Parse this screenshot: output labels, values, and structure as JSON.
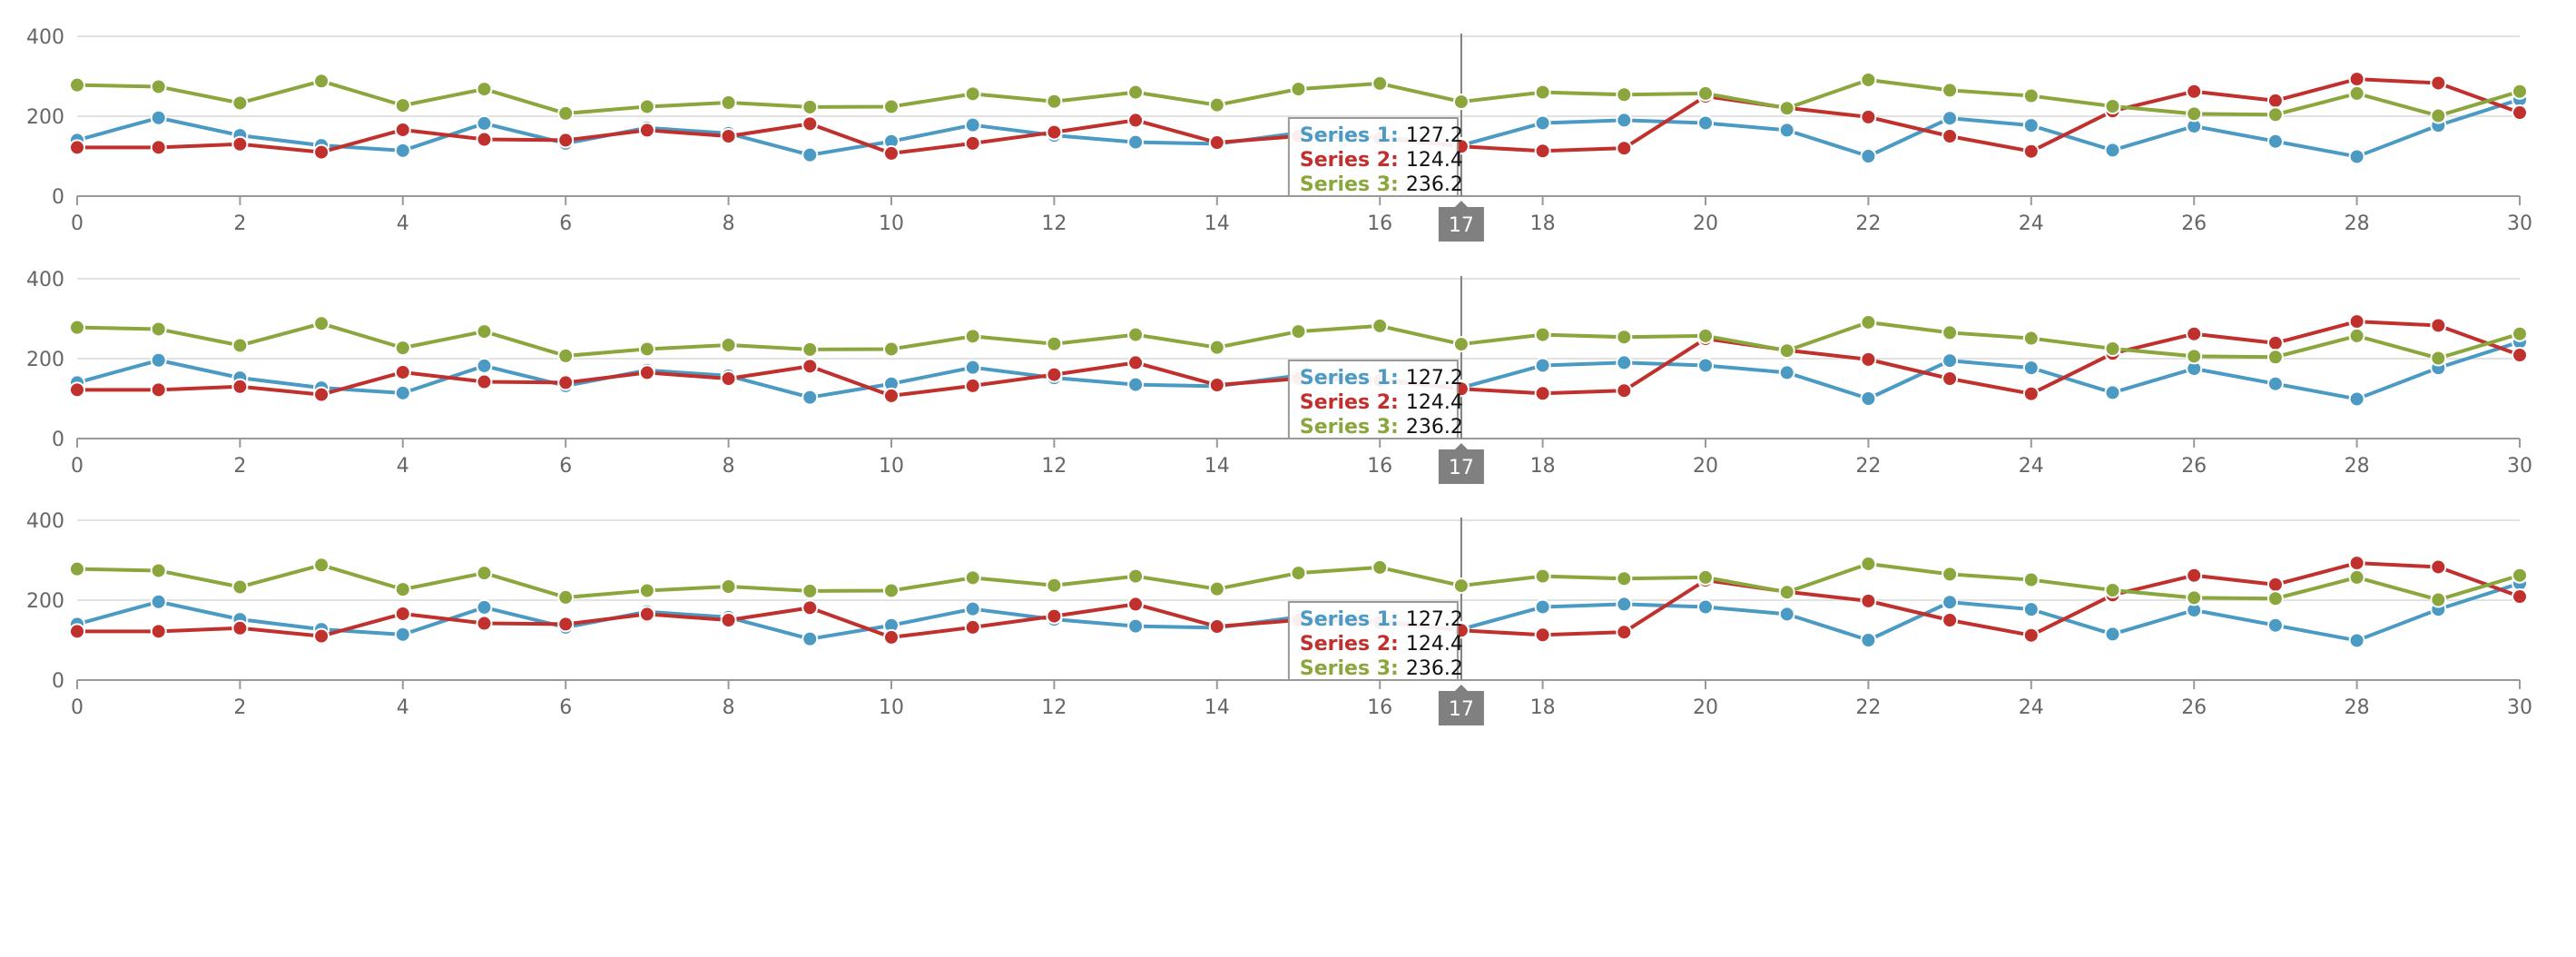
{
  "colors": {
    "series": [
      "#4a9ac4",
      "#c0312e",
      "#8aa63d"
    ],
    "grid": "#d9d9d9",
    "axis": "#999999",
    "tick_label": "#666666",
    "crosshair": "#7f7f7f",
    "crosshair_badge": "#808080",
    "tooltip_border": "#999999",
    "tooltip_bg": "#ffffff"
  },
  "chart_data": [
    {
      "type": "line",
      "x": [
        0,
        1,
        2,
        3,
        4,
        5,
        6,
        7,
        8,
        9,
        10,
        11,
        12,
        13,
        14,
        15,
        16,
        17,
        18,
        19,
        20,
        21,
        22,
        23,
        24,
        25,
        26,
        27,
        28,
        29,
        30
      ],
      "xticks": [
        "0",
        "2",
        "4",
        "6",
        "8",
        "10",
        "12",
        "14",
        "16",
        "18",
        "20",
        "22",
        "24",
        "26",
        "28",
        "30"
      ],
      "xlim": [
        0,
        30
      ],
      "yticks": [
        "0",
        "200",
        "400"
      ],
      "ylim": [
        0,
        400
      ],
      "grid": true,
      "series": [
        {
          "name": "Series 1",
          "values": [
            140,
            196,
            152,
            127,
            114,
            182,
            132,
            171,
            157,
            103,
            137,
            178,
            152,
            135,
            131,
            158,
            150,
            127.2,
            183,
            190,
            183,
            165,
            100,
            195,
            177,
            115,
            175,
            137,
            99,
            177,
            242
          ]
        },
        {
          "name": "Series 2",
          "values": [
            122,
            122,
            130,
            110,
            166,
            142,
            140,
            165,
            150,
            181,
            107,
            132,
            160,
            190,
            134,
            150,
            145,
            124.4,
            113,
            120,
            250,
            221,
            198,
            150,
            112,
            213,
            262,
            239,
            293,
            283,
            209
          ]
        },
        {
          "name": "Series 3",
          "values": [
            278,
            274,
            233,
            288,
            227,
            268,
            207,
            224,
            234,
            223,
            224,
            256,
            237,
            260,
            228,
            268,
            282,
            236.2,
            260,
            254,
            257,
            220,
            291,
            265,
            251,
            225,
            206,
            204,
            257,
            201,
            262
          ]
        }
      ],
      "crosshair": {
        "x": 17,
        "label": "17"
      },
      "tooltip": {
        "items": [
          {
            "label": "Series 1:",
            "value": "127.2"
          },
          {
            "label": "Series 2:",
            "value": "124.4"
          },
          {
            "label": "Series 3:",
            "value": "236.2"
          }
        ]
      }
    },
    {
      "type": "line",
      "x": [
        0,
        1,
        2,
        3,
        4,
        5,
        6,
        7,
        8,
        9,
        10,
        11,
        12,
        13,
        14,
        15,
        16,
        17,
        18,
        19,
        20,
        21,
        22,
        23,
        24,
        25,
        26,
        27,
        28,
        29,
        30
      ],
      "xticks": [
        "0",
        "2",
        "4",
        "6",
        "8",
        "10",
        "12",
        "14",
        "16",
        "18",
        "20",
        "22",
        "24",
        "26",
        "28",
        "30"
      ],
      "xlim": [
        0,
        30
      ],
      "yticks": [
        "0",
        "200",
        "400"
      ],
      "ylim": [
        0,
        400
      ],
      "grid": true,
      "series": [
        {
          "name": "Series 1",
          "values": [
            140,
            196,
            152,
            127,
            114,
            182,
            132,
            171,
            157,
            103,
            137,
            178,
            152,
            135,
            131,
            158,
            150,
            127.2,
            183,
            190,
            183,
            165,
            100,
            195,
            177,
            115,
            175,
            137,
            99,
            177,
            242
          ]
        },
        {
          "name": "Series 2",
          "values": [
            122,
            122,
            130,
            110,
            166,
            142,
            140,
            165,
            150,
            181,
            107,
            132,
            160,
            190,
            134,
            150,
            145,
            124.4,
            113,
            120,
            250,
            221,
            198,
            150,
            112,
            213,
            262,
            239,
            293,
            283,
            209
          ]
        },
        {
          "name": "Series 3",
          "values": [
            278,
            274,
            233,
            288,
            227,
            268,
            207,
            224,
            234,
            223,
            224,
            256,
            237,
            260,
            228,
            268,
            282,
            236.2,
            260,
            254,
            257,
            220,
            291,
            265,
            251,
            225,
            206,
            204,
            257,
            201,
            262
          ]
        }
      ],
      "crosshair": {
        "x": 17,
        "label": "17"
      },
      "tooltip": {
        "items": [
          {
            "label": "Series 1:",
            "value": "127.2"
          },
          {
            "label": "Series 2:",
            "value": "124.4"
          },
          {
            "label": "Series 3:",
            "value": "236.2"
          }
        ]
      }
    },
    {
      "type": "line",
      "x": [
        0,
        1,
        2,
        3,
        4,
        5,
        6,
        7,
        8,
        9,
        10,
        11,
        12,
        13,
        14,
        15,
        16,
        17,
        18,
        19,
        20,
        21,
        22,
        23,
        24,
        25,
        26,
        27,
        28,
        29,
        30
      ],
      "xticks": [
        "0",
        "2",
        "4",
        "6",
        "8",
        "10",
        "12",
        "14",
        "16",
        "18",
        "20",
        "22",
        "24",
        "26",
        "28",
        "30"
      ],
      "xlim": [
        0,
        30
      ],
      "yticks": [
        "0",
        "200",
        "400"
      ],
      "ylim": [
        0,
        400
      ],
      "grid": true,
      "series": [
        {
          "name": "Series 1",
          "values": [
            140,
            196,
            152,
            127,
            114,
            182,
            132,
            171,
            157,
            103,
            137,
            178,
            152,
            135,
            131,
            158,
            150,
            127.2,
            183,
            190,
            183,
            165,
            100,
            195,
            177,
            115,
            175,
            137,
            99,
            177,
            242
          ]
        },
        {
          "name": "Series 2",
          "values": [
            122,
            122,
            130,
            110,
            166,
            142,
            140,
            165,
            150,
            181,
            107,
            132,
            160,
            190,
            134,
            150,
            145,
            124.4,
            113,
            120,
            250,
            221,
            198,
            150,
            112,
            213,
            262,
            239,
            293,
            283,
            209
          ]
        },
        {
          "name": "Series 3",
          "values": [
            278,
            274,
            233,
            288,
            227,
            268,
            207,
            224,
            234,
            223,
            224,
            256,
            237,
            260,
            228,
            268,
            282,
            236.2,
            260,
            254,
            257,
            220,
            291,
            265,
            251,
            225,
            206,
            204,
            257,
            201,
            262
          ]
        }
      ],
      "crosshair": {
        "x": 17,
        "label": "17"
      },
      "tooltip": {
        "items": [
          {
            "label": "Series 1:",
            "value": "127.2"
          },
          {
            "label": "Series 2:",
            "value": "124.4"
          },
          {
            "label": "Series 3:",
            "value": "236.2"
          }
        ]
      }
    }
  ]
}
